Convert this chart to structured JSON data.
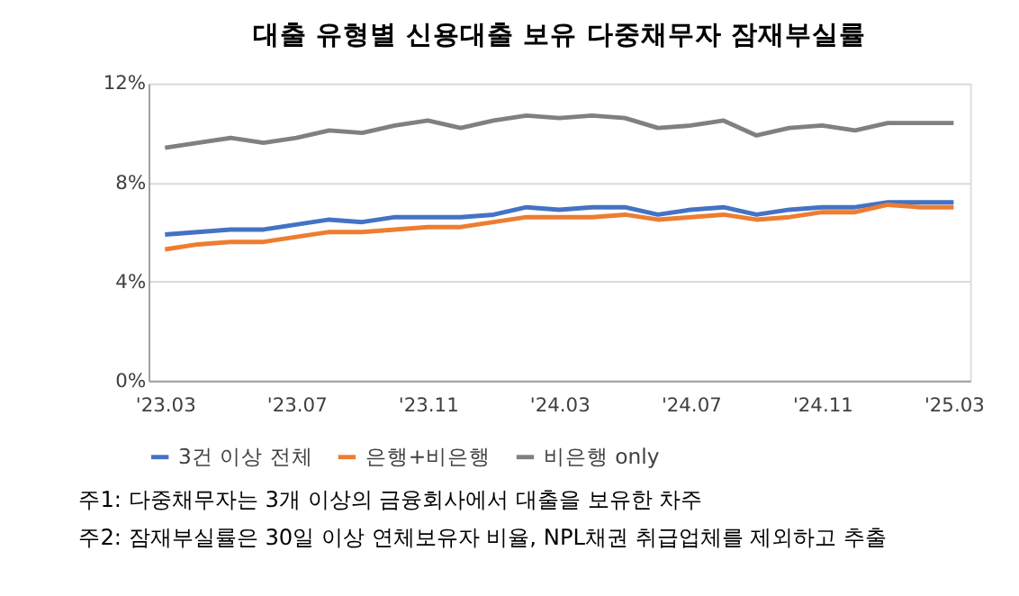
{
  "chart_data": {
    "type": "line",
    "title": "대출 유형별 신용대출 보유 다중채무자 잠재부실률",
    "categories": [
      "'23.03",
      null,
      null,
      null,
      "'23.07",
      null,
      null,
      null,
      "'23.11",
      null,
      null,
      null,
      "'24.03",
      null,
      null,
      null,
      "'24.07",
      null,
      null,
      null,
      "'24.11",
      null,
      null,
      null,
      "'25.03"
    ],
    "series": [
      {
        "name": "3건 이상 전체",
        "color": "#4472c4",
        "values": [
          5.9,
          6.0,
          6.1,
          6.1,
          6.3,
          6.5,
          6.4,
          6.6,
          6.6,
          6.6,
          6.7,
          7.0,
          6.9,
          7.0,
          7.0,
          6.7,
          6.9,
          7.0,
          6.7,
          6.9,
          7.0,
          7.0,
          7.2,
          7.2,
          7.2
        ]
      },
      {
        "name": "은행+비은행",
        "color": "#ed7d31",
        "values": [
          5.3,
          5.5,
          5.6,
          5.6,
          5.8,
          6.0,
          6.0,
          6.1,
          6.2,
          6.2,
          6.4,
          6.6,
          6.6,
          6.6,
          6.7,
          6.5,
          6.6,
          6.7,
          6.5,
          6.6,
          6.8,
          6.8,
          7.1,
          7.0,
          7.0
        ]
      },
      {
        "name": "비은행 only",
        "color": "#808080",
        "values": [
          9.4,
          9.6,
          9.8,
          9.6,
          9.8,
          10.1,
          10.0,
          10.3,
          10.5,
          10.2,
          10.5,
          10.7,
          10.6,
          10.7,
          10.6,
          10.2,
          10.3,
          10.5,
          9.9,
          10.2,
          10.3,
          10.1,
          10.4,
          10.4,
          10.4
        ]
      }
    ],
    "ylim": [
      0,
      12
    ],
    "yticks": [
      {
        "value": 0,
        "label": "0%"
      },
      {
        "value": 4,
        "label": "4%"
      },
      {
        "value": 8,
        "label": "8%"
      },
      {
        "value": 12,
        "label": "12%"
      }
    ],
    "grid": "y",
    "legend": "bottom",
    "marker": "none",
    "line_style": "solid",
    "annotations": [
      "주1: 다중채무자는 3개 이상의 금융회사에서 대출을 보유한 차주",
      "주2: 잠재부실률은 30일 이상 연체보유자 비율, NPL채권 취급업체를 제외하고 추출"
    ]
  }
}
